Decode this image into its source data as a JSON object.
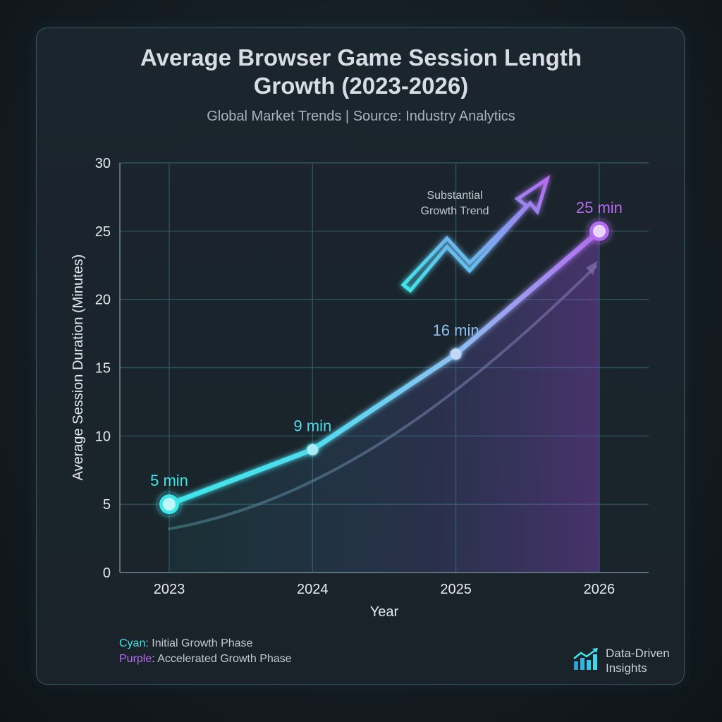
{
  "header": {
    "title_line1": "Average Browser Game Session Length",
    "title_line2": "Growth (2023-2026)",
    "subtitle": "Global Market Trends | Source: Industry Analytics"
  },
  "chart_data": {
    "type": "line",
    "x": [
      "2023",
      "2024",
      "2025",
      "2026"
    ],
    "series": [
      {
        "values": [
          5,
          9,
          16,
          25
        ],
        "point_labels": [
          "5 min",
          "9 min",
          "16 min",
          "25 min"
        ],
        "colors": [
          "#3fe6ea",
          "#4fdcef",
          "#8cc0f2",
          "#b46cf0"
        ]
      }
    ],
    "xlabel": "Year",
    "ylabel": "Average Session Duration (Minutes)",
    "ylim": [
      0,
      30
    ],
    "yticks": [
      0,
      5,
      10,
      15,
      20,
      25,
      30
    ],
    "grid": true,
    "annotation": {
      "line1": "Substantial",
      "line2": "Growth Trend"
    }
  },
  "legend": {
    "cyan_keyword": "Cyan",
    "cyan_text": ": Initial Growth Phase",
    "purple_keyword": "Purple",
    "purple_text": ": Accelerated Growth Phase"
  },
  "brand": {
    "line1": "Data-Driven",
    "line2": "Insights",
    "icon": "bar-chart-trend-icon"
  },
  "colors": {
    "cyan": "#3fe6ea",
    "purple": "#b46cf0",
    "grid": "#2f5a63"
  }
}
